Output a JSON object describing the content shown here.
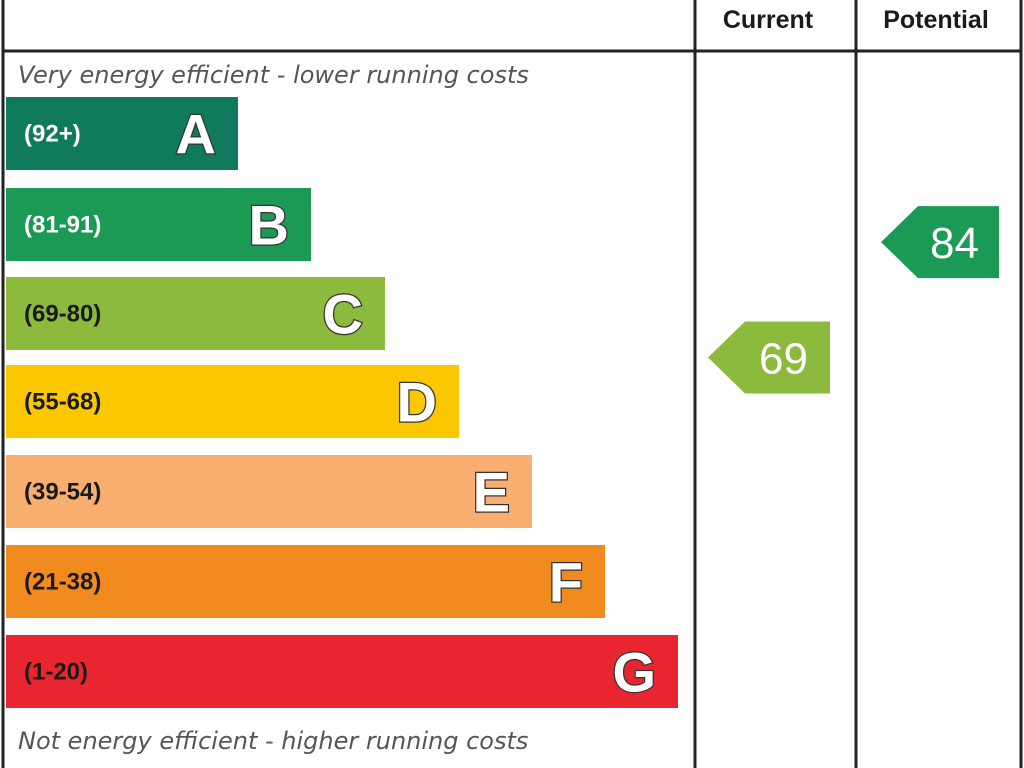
{
  "header": {
    "current_label": "Current",
    "potential_label": "Potential"
  },
  "top_caption": "Very energy efficient - lower running costs",
  "bottom_caption": "Not energy efficient - higher running costs",
  "chart_data": {
    "type": "bar",
    "bands": [
      {
        "letter": "A",
        "range": "(92+)",
        "color": "#0f7b5c",
        "range_color": "#ffffff"
      },
      {
        "letter": "B",
        "range": "(81-91)",
        "color": "#1b9a55",
        "range_color": "#ffffff"
      },
      {
        "letter": "C",
        "range": "(69-80)",
        "color": "#8cba3c",
        "range_color": "#1a1a1a"
      },
      {
        "letter": "D",
        "range": "(55-68)",
        "color": "#fbc800",
        "range_color": "#1a1a1a"
      },
      {
        "letter": "E",
        "range": "(39-54)",
        "color": "#f7ae6e",
        "range_color": "#1a1a1a"
      },
      {
        "letter": "F",
        "range": "(21-38)",
        "color": "#f18b1f",
        "range_color": "#1a1a1a"
      },
      {
        "letter": "G",
        "range": "(1-20)",
        "color": "#e9262f",
        "range_color": "#1a1a1a"
      }
    ],
    "ratings": [
      {
        "column": "Current",
        "value": 69,
        "band": "C",
        "color": "#8cba3c"
      },
      {
        "column": "Potential",
        "value": 84,
        "band": "B",
        "color": "#1b9a55"
      }
    ]
  }
}
